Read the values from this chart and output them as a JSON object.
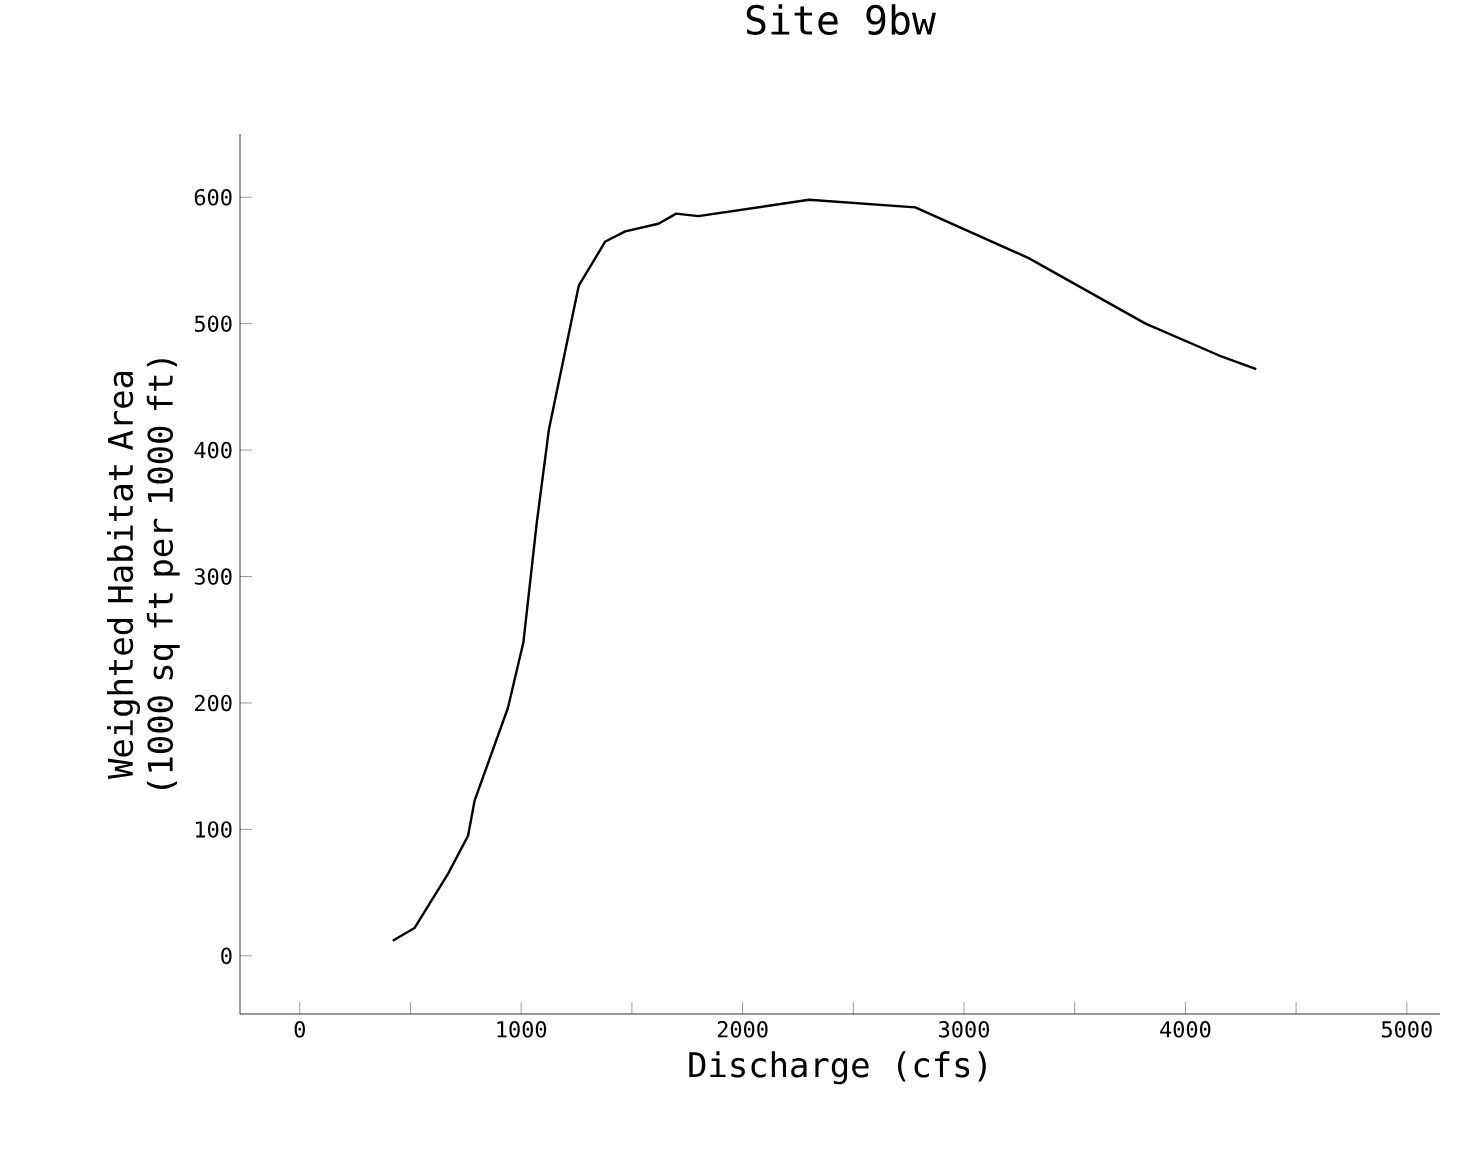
{
  "chart_data": {
    "type": "line",
    "title": "Site 9bw",
    "xlabel": "Discharge (cfs)",
    "ylabel": "Weighted Habitat Area\n(1000 sq ft per 1000 ft)",
    "x": [
      420,
      518,
      670,
      760,
      790,
      940,
      1010,
      1070,
      1125,
      1260,
      1380,
      1470,
      1620,
      1700,
      1800,
      2300,
      2780,
      3290,
      3820,
      4150,
      4320
    ],
    "values": [
      12,
      22,
      65,
      95,
      123,
      196,
      248,
      342,
      416,
      530,
      565,
      573,
      579,
      587,
      585,
      598,
      592,
      552,
      500,
      475,
      464
    ],
    "color": "#000000",
    "xlim": [
      -270,
      5150
    ],
    "ylim": [
      -46,
      650
    ],
    "xticks": [
      0,
      {
        "value": 500,
        "label": null
      },
      1000,
      {
        "value": 1500,
        "label": null
      },
      2000,
      {
        "value": 2500,
        "label": null
      },
      3000,
      {
        "value": 3500,
        "label": null
      },
      4000,
      {
        "value": 4500,
        "label": null
      },
      5000
    ],
    "yticks": [
      0,
      100,
      200,
      300,
      400,
      500,
      600
    ],
    "marker": "none",
    "line_style": "solid"
  }
}
